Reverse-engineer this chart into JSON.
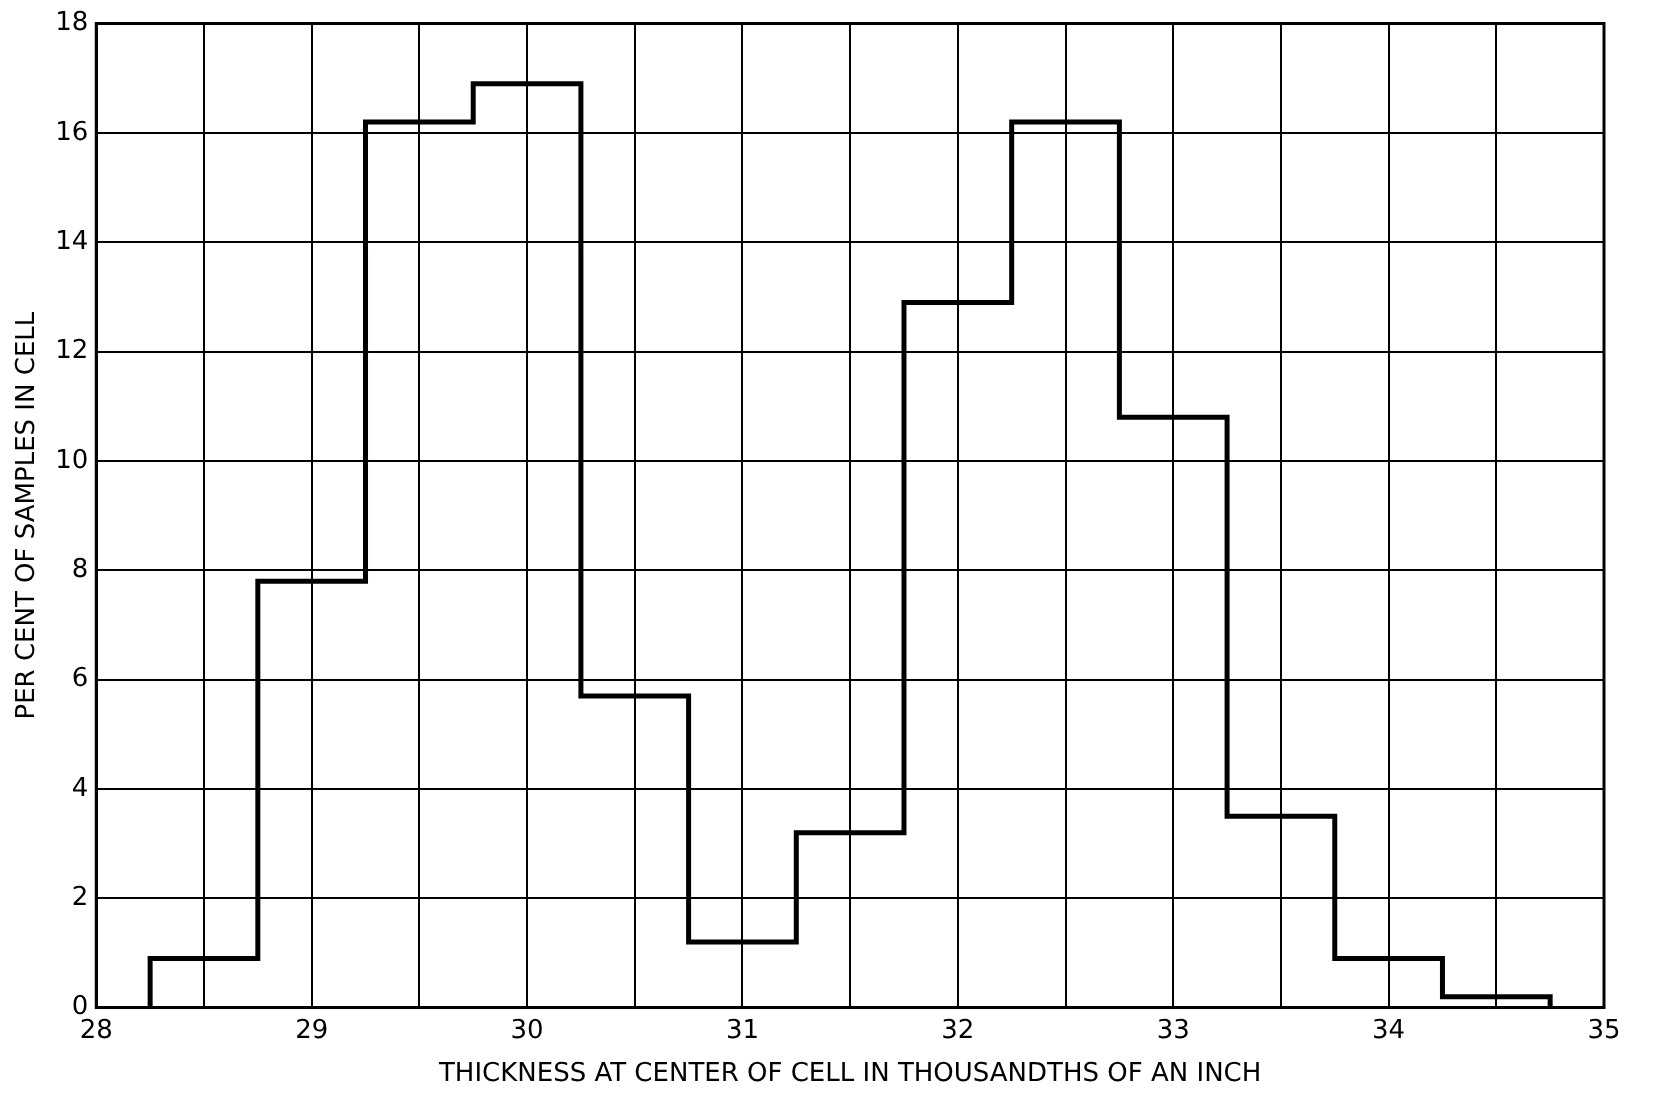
{
  "chart_data": {
    "type": "histogram",
    "xlabel": "THICKNESS AT CENTER OF CELL IN THOUSANDTHS OF AN INCH",
    "ylabel": "PER CENT OF SAMPLES IN CELL",
    "bins": [
      28.25,
      28.75,
      29.25,
      29.75,
      30.25,
      30.75,
      31.25,
      31.75,
      32.25,
      32.75,
      33.25,
      33.75,
      34.25,
      34.75
    ],
    "values": [
      0.9,
      7.8,
      16.2,
      16.9,
      5.7,
      1.2,
      3.2,
      12.9,
      16.2,
      10.8,
      3.5,
      0.9,
      0.2
    ],
    "color": "#000000",
    "xlim": [
      28,
      35
    ],
    "xticks": [
      28,
      {
        "value": 28.5,
        "label": null
      },
      29,
      {
        "value": 29.5,
        "label": null
      },
      30,
      {
        "value": 30.5,
        "label": null
      },
      31,
      {
        "value": 31.5,
        "label": null
      },
      32,
      {
        "value": 32.5,
        "label": null
      },
      33,
      {
        "value": 33.5,
        "label": null
      },
      34,
      {
        "value": 34.5,
        "label": null
      },
      35
    ],
    "ylim": [
      0,
      18
    ],
    "yticks": [
      0,
      2,
      4,
      6,
      8,
      10,
      12,
      14,
      16,
      18
    ],
    "grid": true
  }
}
